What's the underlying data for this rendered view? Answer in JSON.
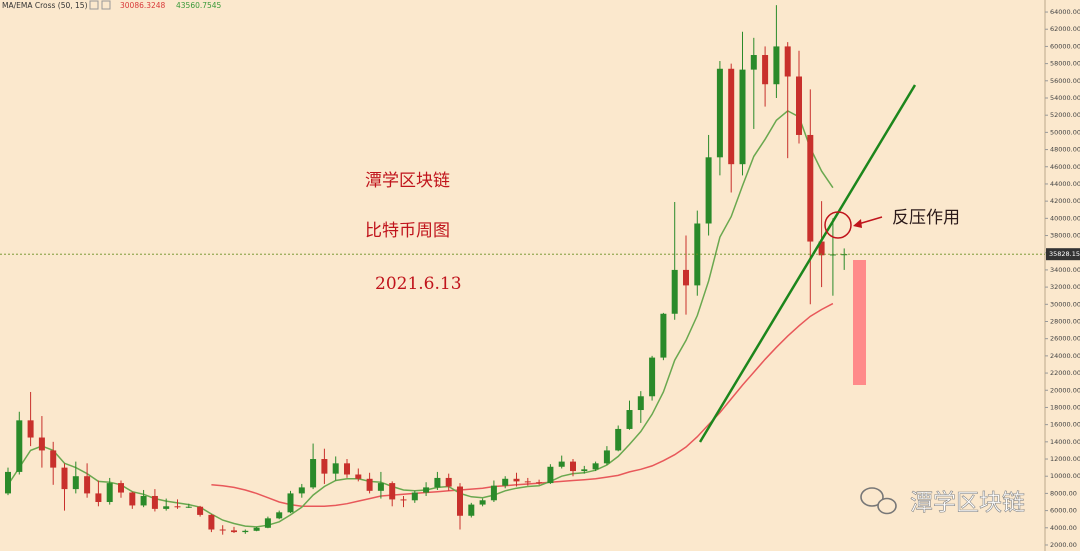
{
  "chart_data": {
    "type": "candlestick",
    "title": "MA/EMA Cross (50, 15)",
    "ylim": [
      1300,
      65400
    ],
    "yticks": [
      {
        "value": 2000,
        "label": "2000.00"
      },
      {
        "value": 4000,
        "label": "4000.00"
      },
      {
        "value": 6000,
        "label": "6000.00"
      },
      {
        "value": 8000,
        "label": "8000.00"
      },
      {
        "value": 10000,
        "label": "10000.00"
      },
      {
        "value": 12000,
        "label": "12000.00"
      },
      {
        "value": 14000,
        "label": "14000.00"
      },
      {
        "value": 16000,
        "label": "16000.00"
      },
      {
        "value": 18000,
        "label": "18000.00"
      },
      {
        "value": 20000,
        "label": "20000.00"
      },
      {
        "value": 22000,
        "label": "22000.00"
      },
      {
        "value": 24000,
        "label": "24000.00"
      },
      {
        "value": 26000,
        "label": "26000.00"
      },
      {
        "value": 28000,
        "label": "28000.00"
      },
      {
        "value": 30000,
        "label": "30000.00"
      },
      {
        "value": 32000,
        "label": "32000.00"
      },
      {
        "value": 34000,
        "label": "34000.00"
      },
      {
        "value": 36000,
        "label": "36000.00"
      },
      {
        "value": 38000,
        "label": "38000.00"
      },
      {
        "value": 40000,
        "label": "40000.00"
      },
      {
        "value": 42000,
        "label": "42000.00"
      },
      {
        "value": 44000,
        "label": "44000.00"
      },
      {
        "value": 46000,
        "label": "46000.00"
      },
      {
        "value": 48000,
        "label": "48000.00"
      },
      {
        "value": 50000,
        "label": "50000.00"
      },
      {
        "value": 52000,
        "label": "52000.00"
      },
      {
        "value": 54000,
        "label": "54000.00"
      },
      {
        "value": 56000,
        "label": "56000.00"
      },
      {
        "value": 58000,
        "label": "58000.00"
      },
      {
        "value": 60000,
        "label": "60000.00"
      },
      {
        "value": 62000,
        "label": "62000.00"
      },
      {
        "value": 64000,
        "label": "64000.00"
      }
    ],
    "up_color": "#2a8a2a",
    "down_color": "#c8302c",
    "ohlc": [
      [
        8000,
        11000,
        7800,
        10500
      ],
      [
        10500,
        17500,
        10200,
        16500
      ],
      [
        16500,
        19800,
        13500,
        14500
      ],
      [
        14500,
        17000,
        11000,
        13000
      ],
      [
        13000,
        14000,
        9000,
        11000
      ],
      [
        11000,
        11500,
        6000,
        8500
      ],
      [
        8500,
        11700,
        8000,
        10000
      ],
      [
        10000,
        11500,
        7500,
        8000
      ],
      [
        8000,
        9500,
        6500,
        7000
      ],
      [
        7000,
        9800,
        6700,
        9200
      ],
      [
        9200,
        9500,
        7500,
        8100
      ],
      [
        8100,
        8200,
        6200,
        6600
      ],
      [
        6600,
        8400,
        6400,
        7700
      ],
      [
        7700,
        8500,
        5900,
        6200
      ],
      [
        6200,
        7400,
        6000,
        6500
      ],
      [
        6500,
        7300,
        6200,
        6400
      ],
      [
        6400,
        6800,
        6300,
        6450
      ],
      [
        6450,
        6550,
        5300,
        5500
      ],
      [
        5500,
        5600,
        3500,
        3800
      ],
      [
        3800,
        4300,
        3200,
        3700
      ],
      [
        3700,
        4100,
        3400,
        3500
      ],
      [
        3500,
        3800,
        3300,
        3650
      ],
      [
        3650,
        4100,
        3600,
        4000
      ],
      [
        4000,
        5300,
        3950,
        5100
      ],
      [
        5100,
        6000,
        5000,
        5800
      ],
      [
        5800,
        8300,
        5700,
        8000
      ],
      [
        8000,
        9100,
        7500,
        8700
      ],
      [
        8700,
        13800,
        8500,
        12000
      ],
      [
        12000,
        13200,
        9100,
        10300
      ],
      [
        10300,
        12300,
        9500,
        11500
      ],
      [
        11500,
        12000,
        9800,
        10200
      ],
      [
        10200,
        10900,
        9400,
        9700
      ],
      [
        9700,
        10400,
        8000,
        8300
      ],
      [
        8300,
        10500,
        7400,
        9200
      ],
      [
        9200,
        9400,
        6500,
        7300
      ],
      [
        7300,
        7700,
        6400,
        7200
      ],
      [
        7200,
        8300,
        6900,
        8100
      ],
      [
        8100,
        9300,
        7700,
        8700
      ],
      [
        8700,
        10500,
        8400,
        9800
      ],
      [
        9800,
        10300,
        8300,
        8800
      ],
      [
        8800,
        9200,
        3800,
        5400
      ],
      [
        5400,
        6900,
        5200,
        6700
      ],
      [
        6700,
        7400,
        6500,
        7200
      ],
      [
        7200,
        9500,
        7000,
        8900
      ],
      [
        8900,
        10000,
        8600,
        9700
      ],
      [
        9700,
        10400,
        8800,
        9400
      ],
      [
        9400,
        9800,
        8900,
        9300
      ],
      [
        9300,
        9600,
        9000,
        9200
      ],
      [
        9200,
        11400,
        9100,
        11100
      ],
      [
        11100,
        12400,
        10900,
        11700
      ],
      [
        11700,
        12000,
        10000,
        10600
      ],
      [
        10600,
        11200,
        10300,
        10800
      ],
      [
        10800,
        11700,
        10600,
        11500
      ],
      [
        11500,
        13500,
        11300,
        13000
      ],
      [
        13000,
        15900,
        12900,
        15500
      ],
      [
        15500,
        18800,
        15400,
        17700
      ],
      [
        17700,
        19900,
        16200,
        19300
      ],
      [
        19300,
        24000,
        18800,
        23800
      ],
      [
        23800,
        29000,
        23500,
        28900
      ],
      [
        28900,
        41900,
        28200,
        34000
      ],
      [
        34000,
        38000,
        28800,
        32200
      ],
      [
        32200,
        40900,
        31000,
        39400
      ],
      [
        39400,
        49700,
        38000,
        47100
      ],
      [
        47100,
        58300,
        45000,
        57400
      ],
      [
        57400,
        58000,
        43000,
        46300
      ],
      [
        46300,
        61700,
        45000,
        57300
      ],
      [
        57300,
        61000,
        50400,
        59000
      ],
      [
        59000,
        60000,
        53000,
        55600
      ],
      [
        55600,
        64800,
        54000,
        60000
      ],
      [
        60000,
        60500,
        47000,
        56500
      ],
      [
        56500,
        59500,
        48700,
        49700
      ],
      [
        49700,
        55000,
        30000,
        37300
      ],
      [
        37300,
        42000,
        32000,
        35700
      ],
      [
        35700,
        40000,
        31000,
        35800
      ],
      [
        35800,
        36500,
        34000,
        35828.15
      ]
    ],
    "series": [
      {
        "color": "#e8585a",
        "last_value": 30086.3248,
        "values": [
          null,
          null,
          null,
          null,
          null,
          null,
          null,
          null,
          null,
          null,
          null,
          null,
          null,
          null,
          null,
          null,
          null,
          null,
          9000,
          8900,
          8700,
          8400,
          8000,
          7500,
          7000,
          6700,
          6500,
          6500,
          6500,
          6600,
          6800,
          7100,
          7400,
          7700,
          7800,
          7900,
          8000,
          8100,
          8200,
          8300,
          8400,
          8500,
          8600,
          8800,
          8900,
          9000,
          9100,
          9200,
          9300,
          9400,
          9500,
          9600,
          9700,
          9900,
          10100,
          10500,
          10800,
          11200,
          11800,
          12500,
          13400,
          14600,
          16000,
          17400,
          19000,
          20600,
          22100,
          23600,
          25000,
          26300,
          27500,
          28600,
          29400,
          30086.3248,
          null
        ]
      },
      {
        "color": "#6aa84f",
        "last_value": 43560.7545,
        "values": [
          9000,
          11000,
          13000,
          13500,
          13000,
          11500,
          11000,
          10300,
          9400,
          9300,
          9000,
          8200,
          7900,
          7400,
          7100,
          6900,
          6700,
          6400,
          5600,
          4900,
          4500,
          4200,
          4100,
          4300,
          4700,
          5500,
          6400,
          7800,
          8800,
          9500,
          9700,
          9700,
          9400,
          9300,
          8800,
          8400,
          8300,
          8400,
          8700,
          8800,
          8000,
          7600,
          7500,
          7800,
          8300,
          8600,
          8800,
          8900,
          9400,
          10000,
          10300,
          10400,
          10700,
          11300,
          12300,
          13700,
          15200,
          17200,
          19800,
          23500,
          25800,
          28700,
          32700,
          37800,
          40200,
          43800,
          47200,
          49200,
          51400,
          52500,
          51800,
          48200,
          45500,
          43560.7545,
          null
        ]
      }
    ],
    "last_price": 35828.15,
    "annotations": [
      "潭学区块链",
      "比特币周图",
      "2021.6.13",
      "反压作用"
    ],
    "watermark": "潭学区块链"
  }
}
